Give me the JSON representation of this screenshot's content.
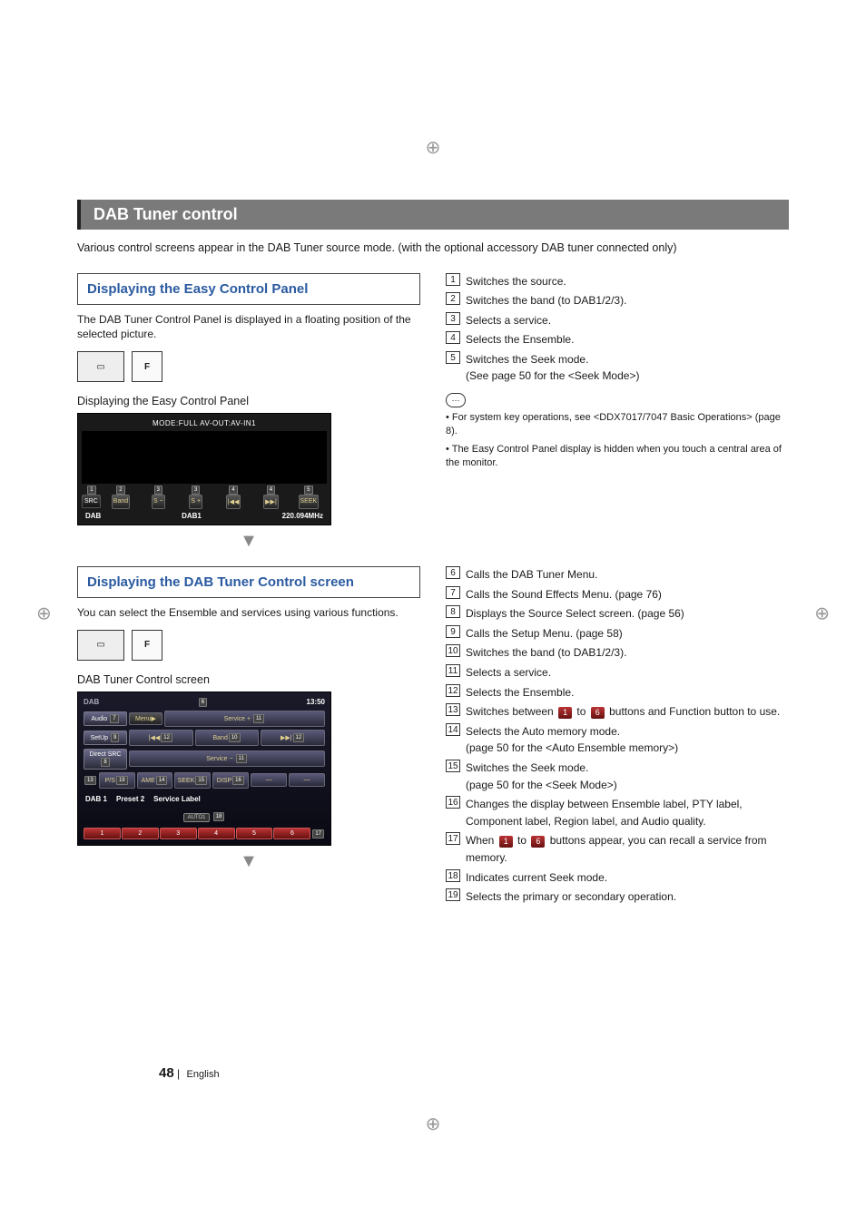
{
  "registrations": {
    "mark": "⊕"
  },
  "header": {
    "title": "DAB Tuner control"
  },
  "intro": "Various control screens appear in the DAB Tuner source mode. (with the optional accessory DAB tuner connected only)",
  "section1": {
    "title": "Displaying the Easy Control Panel",
    "desc": "The DAB Tuner Control Panel is displayed in a floating position of the selected picture.",
    "thumb_f": "F",
    "sub": "Displaying the Easy Control Panel",
    "ui": {
      "topbar": "MODE:FULL  AV-OUT:AV-IN1",
      "src": "SRC",
      "buttons": [
        "Band",
        "S −",
        "S +",
        "|◀◀",
        "▶▶|",
        "SEEK"
      ],
      "refs": {
        "src": "1",
        "band": "2",
        "sm": "3",
        "sp": "3",
        "bw": "4",
        "fw": "4",
        "seek": "5"
      },
      "status_left": "DAB",
      "status_mid": "DAB1",
      "status_right": "220.094MHz"
    },
    "callouts": [
      {
        "n": "1",
        "t": "Switches the source."
      },
      {
        "n": "2",
        "t": "Switches the band (to DAB1/2/3)."
      },
      {
        "n": "3",
        "t": "Selects a service."
      },
      {
        "n": "4",
        "t": "Selects the Ensemble."
      },
      {
        "n": "5",
        "t": "Switches the Seek mode.",
        "t2": "(See page 50 for the <Seek Mode>)"
      }
    ],
    "note_icon": "⋯",
    "notes": [
      "For system key operations, see <DDX7017/7047 Basic Operations> (page 8).",
      "The Easy Control Panel display is hidden when you touch a central area of the monitor."
    ]
  },
  "section2": {
    "title": "Displaying the DAB Tuner Control screen",
    "desc": "You can select the Ensemble and services using various functions.",
    "thumb_f": "F",
    "sub": "DAB Tuner Control screen",
    "ui": {
      "label": "DAB",
      "time": "13:50",
      "side": [
        "Audio",
        "SetUp",
        "Direct SRC"
      ],
      "side_refs": {
        "audio": "7",
        "setup": "9",
        "direct": "8"
      },
      "menu": "Menu▶",
      "menu_ref": "6",
      "row1": [
        "Service +"
      ],
      "row1_ref": "11",
      "row2": [
        "|◀◀",
        "Band",
        "▶▶|"
      ],
      "row2_refs": {
        "bw": "12",
        "band": "10",
        "fw": "12"
      },
      "row3": [
        "Service −"
      ],
      "row3_ref": "11",
      "small_row": [
        "P/S",
        "AME",
        "SEEK",
        "DISP",
        "—",
        "—"
      ],
      "small_left_ref": "13",
      "small_refs": {
        "ps": "19",
        "ame": "14",
        "seek": "15",
        "disp": "16"
      },
      "status": [
        "DAB 1",
        "Preset 2",
        "Service Label"
      ],
      "auto": "AUTO1",
      "auto_ref": "18",
      "nums": [
        "1",
        "2",
        "3",
        "4",
        "5",
        "6"
      ],
      "nums_ref": "17"
    },
    "callouts": [
      {
        "n": "6",
        "t": "Calls the DAB Tuner Menu."
      },
      {
        "n": "7",
        "t": "Calls the Sound Effects Menu. (page 76)"
      },
      {
        "n": "8",
        "t": "Displays the Source Select screen. (page 56)"
      },
      {
        "n": "9",
        "t": "Calls the Setup Menu. (page 58)"
      },
      {
        "n": "10",
        "t": "Switches the band (to DAB1/2/3)."
      },
      {
        "n": "11",
        "t": "Selects a service."
      },
      {
        "n": "12",
        "t": "Selects the Ensemble."
      },
      {
        "n": "13",
        "pre": "Switches between ",
        "b1": "1",
        "mid": " to ",
        "b2": "6",
        "post": " buttons and Function button to use."
      },
      {
        "n": "14",
        "t": "Selects the Auto memory mode.",
        "t2": "(page 50 for the <Auto Ensemble memory>)"
      },
      {
        "n": "15",
        "t": "Switches the Seek mode.",
        "t2": "(page 50 for the <Seek Mode>)"
      },
      {
        "n": "16",
        "t": "Changes the display between Ensemble label, PTY label, Component label, Region label, and Audio quality."
      },
      {
        "n": "17",
        "pre": "When ",
        "b1": "1",
        "mid": " to ",
        "b2": "6",
        "post": " buttons appear, you can recall a service from memory."
      },
      {
        "n": "18",
        "t": "Indicates current Seek mode."
      },
      {
        "n": "19",
        "t": "Selects the primary or secondary operation."
      }
    ]
  },
  "footer": {
    "page": "48",
    "sep": "|",
    "lang": "English"
  },
  "colors": {
    "header_bg": "#7a7a7a",
    "panel_title_color": "#2a5aa0",
    "ui_bg": "#1a1a1a",
    "ui_btn_text": "#e0d090",
    "red_btn": "#bb3333"
  }
}
